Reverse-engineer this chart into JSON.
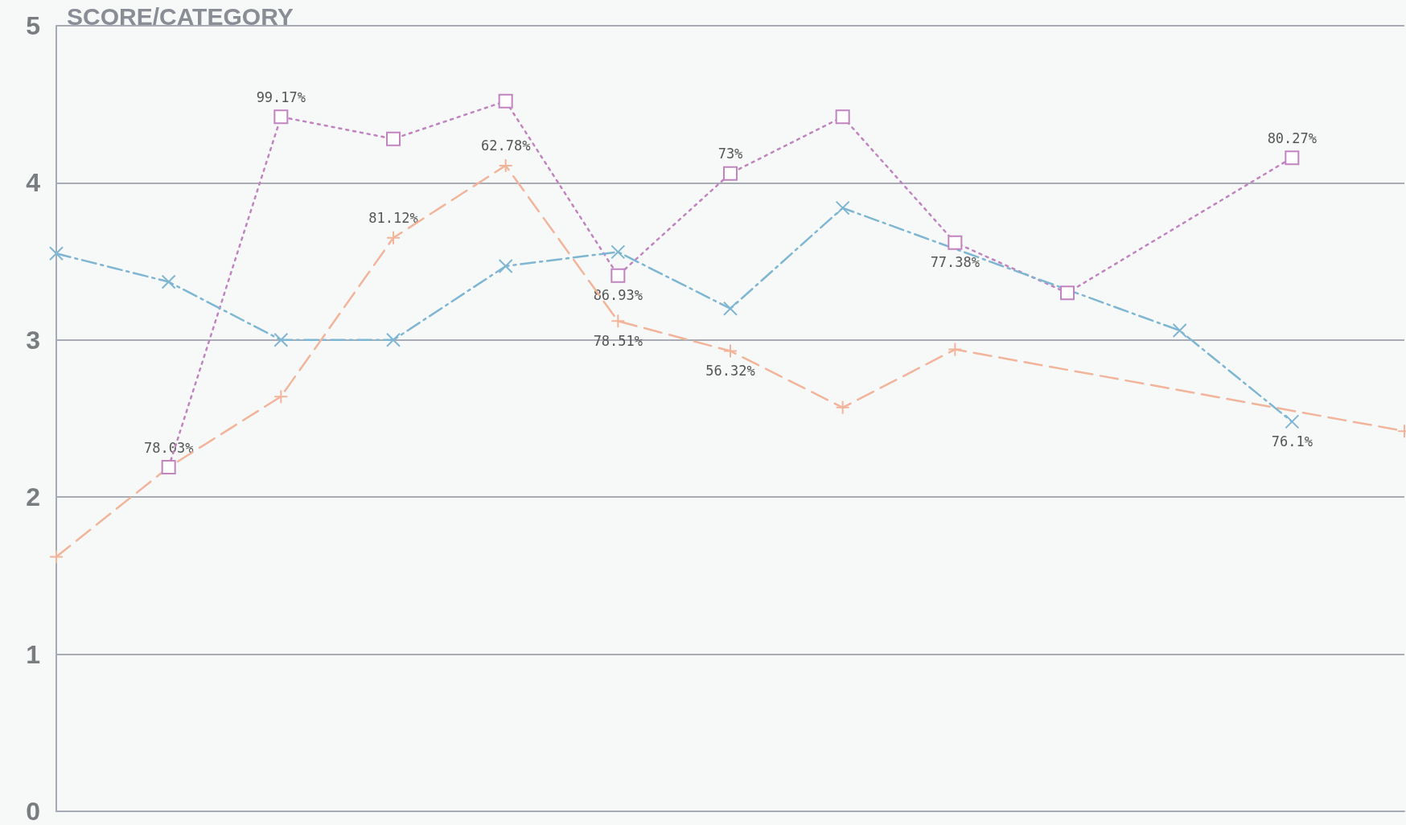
{
  "chart_data": {
    "type": "line",
    "title": "SCORE/CATEGORY",
    "categories": [
      null,
      null,
      null,
      null,
      null,
      null,
      null,
      null,
      null,
      null,
      null,
      null,
      null
    ],
    "series": [
      {
        "color": "#f2b49a",
        "marker": "cross",
        "line_style": "dashed",
        "values": [
          1.62,
          2.19,
          2.64,
          3.65,
          4.11,
          3.12,
          2.93,
          2.57,
          2.94,
          null,
          null,
          null,
          2.42
        ]
      },
      {
        "color": "#c184c0",
        "marker": "square",
        "line_style": "dotted",
        "values": [
          null,
          2.19,
          4.42,
          4.28,
          4.52,
          3.41,
          4.06,
          4.42,
          3.62,
          3.3,
          null,
          4.16,
          null
        ]
      },
      {
        "color": "#7fb6d2",
        "marker": "x",
        "line_style": "dashdot",
        "values": [
          3.55,
          3.37,
          3.0,
          3.0,
          3.47,
          3.56,
          3.2,
          3.84,
          null,
          null,
          3.06,
          2.48,
          null
        ]
      }
    ],
    "annotations": [
      {
        "text": "78.03%",
        "y": 2.19
      },
      {
        "text": "99.17%",
        "y": 4.42
      },
      {
        "text": "81.12%",
        "y": 3.65
      },
      {
        "text": "62.78%",
        "y": 4.11
      },
      {
        "text": "86.93%",
        "y": 3.41
      },
      {
        "text": "73%",
        "y": 4.06
      },
      {
        "text": "78.51%",
        "y": 3.12
      },
      {
        "text": "56.32%",
        "y": 2.93
      },
      {
        "text": "77.38%",
        "y": 3.62
      },
      {
        "text": "80.27%",
        "y": 4.16
      },
      {
        "text": "76.1%",
        "y": 2.48
      }
    ],
    "ylim": [
      0,
      5
    ],
    "yticks": [
      0,
      1,
      2,
      3,
      4,
      5
    ],
    "grid": "y",
    "tick_labels": "y"
  }
}
